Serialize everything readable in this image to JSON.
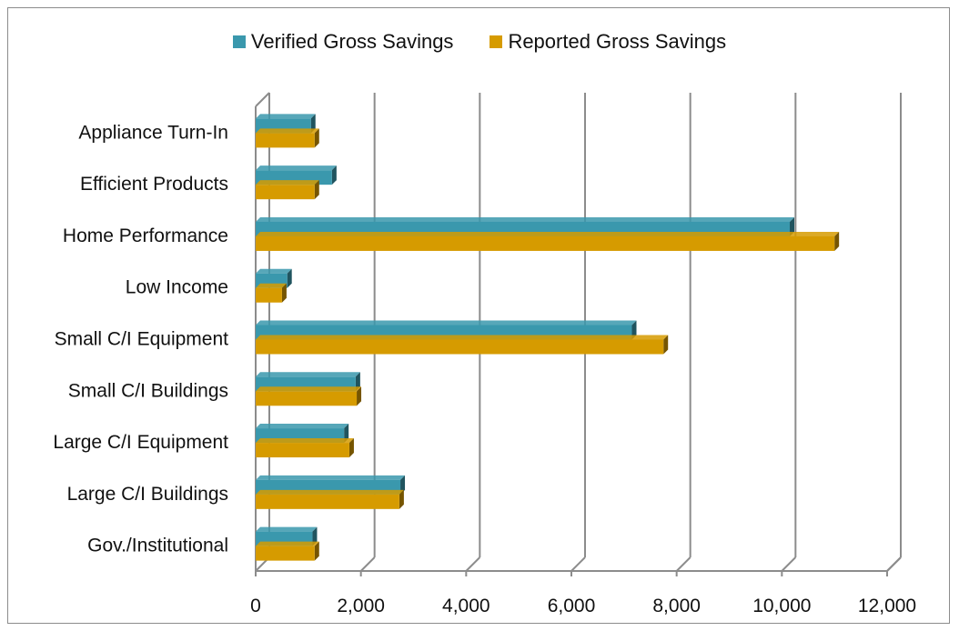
{
  "chart_data": {
    "type": "bar",
    "orientation": "horizontal",
    "title": "",
    "xlabel": "",
    "ylabel": "",
    "categories": [
      "Appliance Turn-In",
      "Efficient Products",
      "Home Performance",
      "Low Income",
      "Small C/I Equipment",
      "Small C/I Buildings",
      "Large C/I Equipment",
      "Large C/I Buildings",
      "Gov./Institutional"
    ],
    "series": [
      {
        "name": "Verified Gross Savings",
        "color": "#3a98ad",
        "values": [
          1050,
          1450,
          10150,
          600,
          7150,
          1900,
          1680,
          2750,
          1080
        ]
      },
      {
        "name": "Reported Gross Savings",
        "color": "#d69b00",
        "values": [
          1120,
          1120,
          11000,
          500,
          7750,
          1920,
          1780,
          2730,
          1120
        ]
      }
    ],
    "xlim": [
      0,
      12000
    ],
    "xticks": [
      "0",
      "2,000",
      "4,000",
      "6,000",
      "8,000",
      "10,000",
      "12,000"
    ],
    "xtick_values": [
      0,
      2000,
      4000,
      6000,
      8000,
      10000,
      12000
    ],
    "grid": "vertical",
    "legend_position": "top"
  }
}
